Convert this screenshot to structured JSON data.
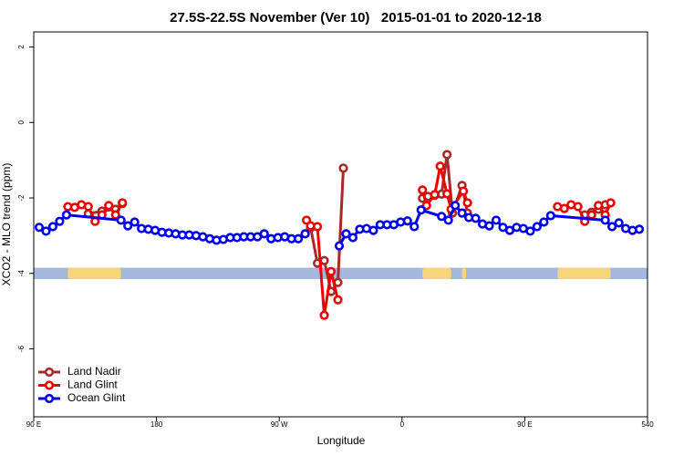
{
  "chart_data": {
    "type": "line",
    "title": "27.5S-22.5S November (Ver 10)   2015-01-01 to 2020-12-18",
    "xlabel": "Longitude",
    "ylabel": "XCO2 - MLO trend (ppm)",
    "xlim": [
      90,
      540
    ],
    "ylim": [
      -7.8,
      2.4
    ],
    "xticks": [
      {
        "value": 90,
        "label": "90 E"
      },
      180,
      {
        "value": 270,
        "label": "90 W"
      },
      {
        "value": 360,
        "label": "0"
      },
      {
        "value": 450,
        "label": "90 E"
      },
      540
    ],
    "yticks": [
      2,
      0,
      -2,
      -4,
      -6
    ],
    "legend": "bottom-left",
    "mask_band": {
      "ylim": [
        -4.15,
        -3.85
      ],
      "ocean_color": "#a3b8dc",
      "land_color": "#f8d57a",
      "land_ranges": [
        [
          115,
          154
        ],
        [
          375,
          396
        ],
        [
          404,
          407
        ],
        [
          474,
          513
        ]
      ]
    },
    "series": [
      {
        "name": "Land Nadir",
        "color": "#a52a2a",
        "x": [
          130,
          140,
          150,
          155,
          200,
          293,
          298,
          303,
          308,
          313,
          317,
          350,
          375,
          379,
          384,
          389,
          393,
          397,
          404,
          408,
          450,
          494,
          499,
          504,
          509
        ],
        "values": [
          -2.42,
          -2.35,
          -2.3,
          -2.15,
          null,
          -2.79,
          -3.73,
          -3.66,
          -4.48,
          -4.24,
          -1.21,
          null,
          -2.01,
          -1.96,
          -1.93,
          -1.9,
          -0.85,
          -2.4,
          -1.67,
          -2.4,
          null,
          -2.45,
          -2.38,
          -2.3,
          -2.18
        ]
      },
      {
        "name": "Land Glint",
        "color": "#ee0000",
        "x": [
          115,
          120,
          125,
          130,
          135,
          140,
          145,
          150,
          155,
          200,
          290,
          293,
          298,
          303,
          308,
          313,
          350,
          375,
          378,
          384,
          388,
          393,
          396,
          405,
          408,
          450,
          474,
          479,
          484,
          489,
          494,
          499,
          504,
          509,
          513
        ],
        "values": [
          -2.23,
          -2.25,
          -2.18,
          -2.23,
          -2.62,
          -2.45,
          -2.2,
          -2.45,
          -2.13,
          null,
          -2.59,
          -2.74,
          -2.76,
          -5.11,
          -3.95,
          -4.7,
          null,
          -1.79,
          -2.2,
          -1.91,
          -1.16,
          -1.89,
          -2.3,
          -1.82,
          -2.13,
          null,
          -2.23,
          -2.28,
          -2.18,
          -2.23,
          -2.62,
          -2.45,
          -2.2,
          -2.45,
          -2.13
        ]
      },
      {
        "name": "Ocean Glint",
        "color": "#0000ee",
        "x": [
          94,
          99,
          104,
          109,
          114,
          154,
          159,
          164,
          169,
          174,
          179,
          184,
          189,
          194,
          199,
          204,
          209,
          214,
          219,
          224,
          229,
          234,
          239,
          244,
          249,
          254,
          259,
          264,
          269,
          274,
          279,
          284,
          289,
          300,
          314,
          319,
          324,
          329,
          334,
          339,
          344,
          349,
          354,
          359,
          364,
          369,
          374,
          389,
          394,
          399,
          404,
          409,
          414,
          419,
          424,
          429,
          434,
          439,
          444,
          449,
          454,
          459,
          464,
          469,
          509,
          514,
          519,
          524,
          529,
          534
        ],
        "values": [
          -2.78,
          -2.88,
          -2.76,
          -2.62,
          -2.45,
          -2.59,
          -2.74,
          -2.64,
          -2.81,
          -2.83,
          -2.86,
          -2.91,
          -2.93,
          -2.95,
          -2.98,
          -2.98,
          -3.0,
          -3.03,
          -3.08,
          -3.12,
          -3.1,
          -3.05,
          -3.05,
          -3.03,
          -3.03,
          -3.03,
          -2.95,
          -3.08,
          -3.05,
          -3.03,
          -3.08,
          -3.08,
          -2.95,
          null,
          -3.27,
          -2.95,
          -3.05,
          -2.83,
          -2.81,
          -2.86,
          -2.71,
          -2.71,
          -2.71,
          -2.64,
          -2.61,
          -2.76,
          -2.32,
          -2.49,
          -2.59,
          -2.2,
          -2.4,
          -2.52,
          -2.54,
          -2.69,
          -2.74,
          -2.59,
          -2.78,
          -2.86,
          -2.78,
          -2.81,
          -2.88,
          -2.76,
          -2.64,
          -2.47,
          -2.59,
          -2.76,
          -2.66,
          -2.81,
          -2.86,
          -2.83
        ]
      }
    ]
  }
}
